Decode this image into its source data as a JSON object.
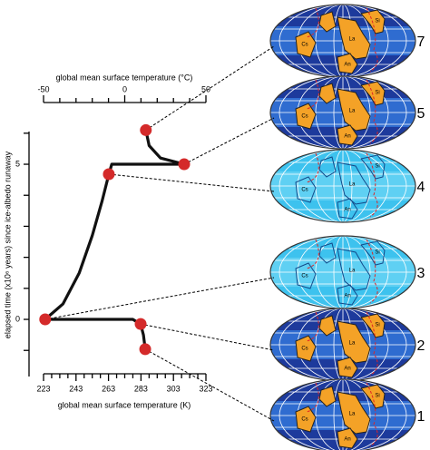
{
  "chart_data": {
    "type": "line",
    "xlabel": "global mean surface temperature (K)",
    "x2label": "global mean surface temperature (°C)",
    "ylabel": "elapsed time (x10⁶ years) since ice-albedo runaway",
    "xlim": [
      223,
      323
    ],
    "xticks": [
      223,
      243,
      263,
      283,
      303,
      323
    ],
    "xminorticks": [
      228,
      233,
      238,
      248,
      253,
      258,
      268,
      273,
      278,
      288,
      293,
      298,
      308,
      313,
      318
    ],
    "x2lim": [
      -50,
      50
    ],
    "x2ticks": [
      -50,
      0,
      50
    ],
    "x2minorticks": [
      -40,
      -30,
      -20,
      -10,
      10,
      20,
      30,
      40
    ],
    "ylim": [
      -1.9,
      6.2
    ],
    "yticks": [
      0,
      5
    ],
    "yminorticks": [
      -1,
      1,
      2,
      3,
      4,
      6
    ],
    "trajectory": {
      "color": "#111111",
      "x": [
        285.6,
        284.5,
        282.8,
        278,
        224,
        235,
        245,
        253,
        259,
        263.2,
        265,
        309.6,
        295,
        288,
        286
      ],
      "y": [
        -0.96,
        -0.5,
        -0.15,
        0,
        0,
        0.5,
        1.5,
        2.7,
        3.8,
        4.68,
        5,
        5,
        5.2,
        5.6,
        6.1
      ]
    },
    "points": {
      "color": "#d42a2a",
      "labels": [
        "7",
        "5",
        "4",
        "3",
        "2",
        "1"
      ],
      "x": [
        286,
        309.6,
        263.2,
        224,
        282.8,
        285.6
      ],
      "y": [
        6.1,
        5,
        4.68,
        0,
        -0.15,
        -0.96
      ]
    },
    "globe_styles": [
      "dark",
      "dark",
      "light",
      "light",
      "dark",
      "dark"
    ],
    "continent_labels": [
      "Si",
      "La",
      "Cs",
      "An"
    ]
  }
}
